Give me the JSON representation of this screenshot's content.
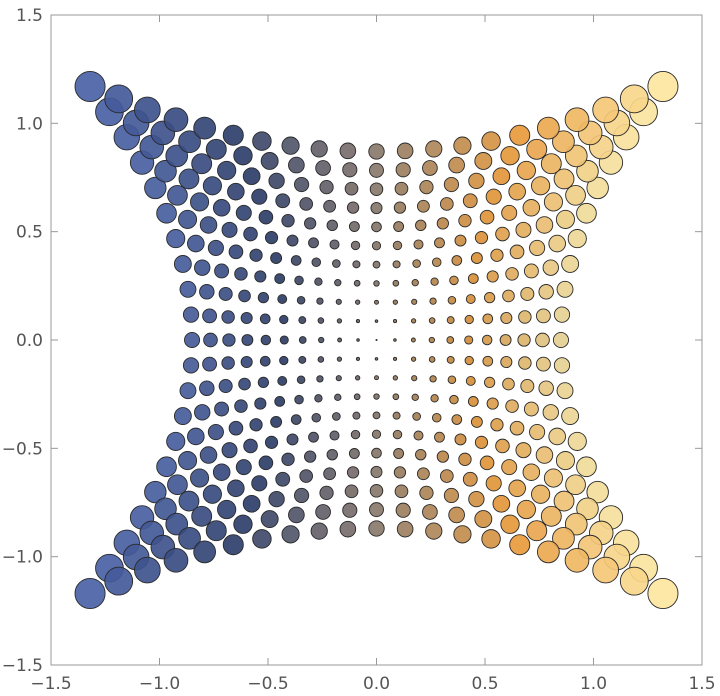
{
  "chart_data": {
    "type": "scatter",
    "title": "",
    "xlabel": "",
    "ylabel": "",
    "xlim": [
      -1.5,
      1.5
    ],
    "ylim": [
      -1.5,
      1.5
    ],
    "grid": false,
    "legend": "none",
    "x_ticks": [
      "−1.5",
      "−1.0",
      "−0.5",
      "0.0",
      "0.5",
      "1.0",
      "1.5"
    ],
    "x_tick_values": [
      -1.5,
      -1.0,
      -0.5,
      0.0,
      0.5,
      1.0,
      1.5
    ],
    "y_ticks": [
      "1.5",
      "1.0",
      "0.5",
      "0.0",
      "−0.5",
      "−1.0",
      "−1.5"
    ],
    "y_tick_values": [
      1.5,
      1.0,
      0.5,
      0.0,
      -0.5,
      -1.0,
      -1.5
    ],
    "series_description": "Grid of circles whose radius grows with distance from origin; grid is distorted into a barrel/hourglass shape spanning x in [-1.32, 1.32] and y in [-1.17, 1.17]. Color runs from blue on the left through dark gray to orange/yellow on the right.",
    "grid_points": {
      "u_values": [
        -1.0,
        -0.9,
        -0.8,
        -0.7,
        -0.6,
        -0.5,
        -0.4,
        -0.3,
        -0.2,
        -0.1,
        0.0,
        0.1,
        0.2,
        0.3,
        0.4,
        0.5,
        0.6,
        0.7,
        0.8,
        0.9,
        1.0
      ],
      "v_values": [
        -1.0,
        -0.9,
        -0.8,
        -0.7,
        -0.6,
        -0.5,
        -0.4,
        -0.3,
        -0.2,
        -0.1,
        0.0,
        0.1,
        0.2,
        0.3,
        0.4,
        0.5,
        0.6,
        0.7,
        0.8,
        0.9,
        1.0
      ],
      "x_mapping": "x = u * (0.85 + 0.47 * v^2)",
      "y_mapping": "y = v * (0.87 + 0.30 * u^2)",
      "size": "r proportional to sqrt(x^2 + y^2)"
    },
    "colors": {
      "left": "#4a62a6",
      "mid_left": "#2e3f6b",
      "center": "#8a7a6c",
      "mid_right": "#e89a3c",
      "right": "#fde6a0",
      "edge_stroke": "#2a2a2a",
      "frame": "#999999",
      "tick_text": "#555555"
    }
  }
}
